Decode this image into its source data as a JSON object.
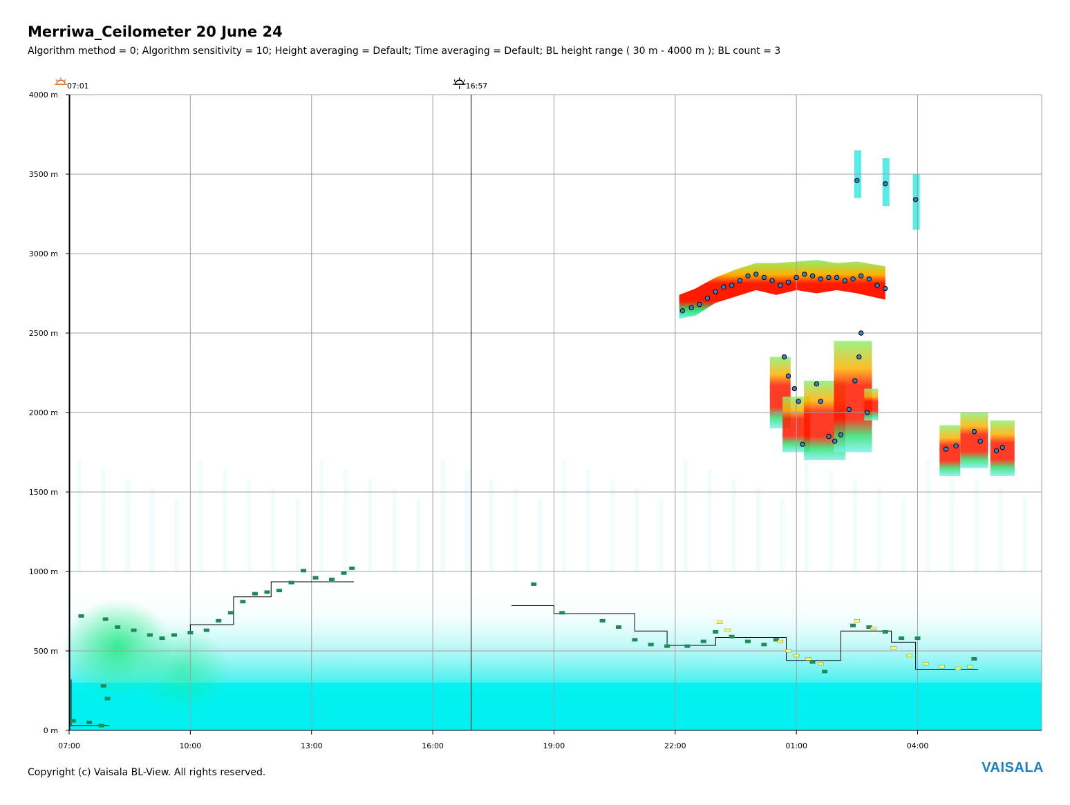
{
  "chart_data": {
    "type": "heatmap",
    "title": "Merriwa_Ceilometer 20 June 24",
    "subtitle": "Algorithm method = 0; Algorithm sensitivity = 10; Height averaging = Default; Time averaging = Default; BL height range ( 30 m - 4000 m ); BL count = 3",
    "y_ticks": [
      {
        "label": "0 m",
        "value": 0
      },
      {
        "label": "500 m",
        "value": 500
      },
      {
        "label": "1000 m",
        "value": 1000
      },
      {
        "label": "1500 m",
        "value": 1500
      },
      {
        "label": "2000 m",
        "value": 2000
      },
      {
        "label": "2500 m",
        "value": 2500
      },
      {
        "label": "3000 m",
        "value": 3000
      },
      {
        "label": "3500 m",
        "value": 3500
      },
      {
        "label": "4000 m",
        "value": 4000
      }
    ],
    "ylim": [
      0,
      4000
    ],
    "x_start_hours": 7.0,
    "x_end_hours": 31.07,
    "x_ticks": [
      {
        "label": "07:00",
        "hours": 7
      },
      {
        "label": "10:00",
        "hours": 10
      },
      {
        "label": "13:00",
        "hours": 13
      },
      {
        "label": "16:00",
        "hours": 16
      },
      {
        "label": "19:00",
        "hours": 19
      },
      {
        "label": "22:00",
        "hours": 22
      },
      {
        "label": "01:00",
        "hours": 25
      },
      {
        "label": "04:00",
        "hours": 28
      }
    ],
    "sunrise": {
      "label": "07:01",
      "hours": 7.017
    },
    "sunset": {
      "label": "16:57",
      "hours": 16.95
    },
    "grid": true,
    "bl_step_line": [
      [
        7.05,
        320
      ],
      [
        7.05,
        30
      ],
      [
        8.0,
        30
      ]
    ],
    "bl_step_line_2": [
      [
        10.0,
        620
      ],
      [
        10.0,
        665
      ],
      [
        11.07,
        665
      ],
      [
        11.07,
        840
      ],
      [
        12.0,
        840
      ],
      [
        12.0,
        935
      ],
      [
        14.05,
        935
      ]
    ],
    "bl_step_line_3": [
      [
        17.95,
        785
      ],
      [
        19.0,
        785
      ],
      [
        19.0,
        735
      ],
      [
        21.0,
        735
      ],
      [
        21.0,
        625
      ],
      [
        21.8,
        625
      ],
      [
        21.8,
        535
      ],
      [
        23.0,
        535
      ],
      [
        23.0,
        585
      ],
      [
        24.75,
        585
      ],
      [
        24.75,
        440
      ],
      [
        26.1,
        440
      ],
      [
        26.1,
        625
      ],
      [
        27.35,
        625
      ],
      [
        27.35,
        555
      ],
      [
        27.95,
        555
      ],
      [
        27.95,
        385
      ],
      [
        29.5,
        385
      ]
    ],
    "bl_points_green": [
      [
        7.3,
        720
      ],
      [
        7.9,
        700
      ],
      [
        8.2,
        650
      ],
      [
        8.6,
        630
      ],
      [
        9.0,
        600
      ],
      [
        9.3,
        580
      ],
      [
        9.6,
        600
      ],
      [
        10.0,
        615
      ],
      [
        10.4,
        630
      ],
      [
        10.7,
        690
      ],
      [
        11.0,
        740
      ],
      [
        11.3,
        810
      ],
      [
        11.6,
        860
      ],
      [
        11.9,
        870
      ],
      [
        12.2,
        880
      ],
      [
        12.5,
        930
      ],
      [
        12.8,
        1005
      ],
      [
        13.1,
        960
      ],
      [
        13.5,
        950
      ],
      [
        13.8,
        990
      ],
      [
        14.0,
        1020
      ],
      [
        7.1,
        60
      ],
      [
        7.5,
        50
      ],
      [
        7.8,
        30
      ],
      [
        7.85,
        280
      ],
      [
        7.95,
        200
      ],
      [
        18.5,
        920
      ],
      [
        19.2,
        740
      ],
      [
        20.2,
        690
      ],
      [
        20.6,
        650
      ],
      [
        21.0,
        570
      ],
      [
        21.4,
        540
      ],
      [
        21.8,
        530
      ],
      [
        22.3,
        530
      ],
      [
        22.7,
        560
      ],
      [
        23.0,
        620
      ],
      [
        23.4,
        590
      ],
      [
        23.8,
        560
      ],
      [
        24.2,
        540
      ],
      [
        24.5,
        570
      ],
      [
        25.4,
        430
      ],
      [
        25.7,
        370
      ],
      [
        26.4,
        660
      ],
      [
        26.8,
        650
      ],
      [
        27.2,
        620
      ],
      [
        27.6,
        580
      ],
      [
        28.0,
        580
      ],
      [
        29.4,
        450
      ]
    ],
    "bl_points_yellow": [
      [
        23.1,
        680
      ],
      [
        23.3,
        630
      ],
      [
        24.6,
        560
      ],
      [
        24.8,
        500
      ],
      [
        25.0,
        470
      ],
      [
        25.3,
        450
      ],
      [
        25.6,
        420
      ],
      [
        26.5,
        690
      ],
      [
        26.9,
        640
      ],
      [
        27.4,
        520
      ],
      [
        27.8,
        470
      ],
      [
        28.2,
        420
      ],
      [
        28.6,
        400
      ],
      [
        29.0,
        390
      ],
      [
        29.3,
        400
      ]
    ],
    "cloud_points": [
      [
        22.18,
        2640
      ],
      [
        22.4,
        2660
      ],
      [
        22.6,
        2680
      ],
      [
        22.8,
        2720
      ],
      [
        23.0,
        2760
      ],
      [
        23.2,
        2790
      ],
      [
        23.4,
        2800
      ],
      [
        23.6,
        2830
      ],
      [
        23.8,
        2860
      ],
      [
        24.0,
        2870
      ],
      [
        24.2,
        2850
      ],
      [
        24.4,
        2830
      ],
      [
        24.6,
        2800
      ],
      [
        24.8,
        2820
      ],
      [
        25.0,
        2850
      ],
      [
        25.2,
        2870
      ],
      [
        25.4,
        2860
      ],
      [
        25.6,
        2840
      ],
      [
        25.8,
        2850
      ],
      [
        26.0,
        2850
      ],
      [
        26.2,
        2830
      ],
      [
        26.4,
        2840
      ],
      [
        26.6,
        2860
      ],
      [
        26.8,
        2840
      ],
      [
        27.0,
        2800
      ],
      [
        27.2,
        2780
      ],
      [
        24.7,
        2350
      ],
      [
        24.8,
        2230
      ],
      [
        24.95,
        2150
      ],
      [
        25.05,
        2070
      ],
      [
        25.15,
        1800
      ],
      [
        25.5,
        2180
      ],
      [
        25.6,
        2070
      ],
      [
        25.8,
        1850
      ],
      [
        25.95,
        1820
      ],
      [
        26.1,
        1860
      ],
      [
        26.3,
        2020
      ],
      [
        26.45,
        2200
      ],
      [
        26.55,
        2350
      ],
      [
        26.6,
        2500
      ],
      [
        26.75,
        2000
      ],
      [
        26.5,
        3460
      ],
      [
        27.2,
        3440
      ],
      [
        27.95,
        3340
      ],
      [
        28.7,
        1770
      ],
      [
        28.95,
        1790
      ],
      [
        29.4,
        1880
      ],
      [
        29.55,
        1820
      ],
      [
        29.95,
        1760
      ],
      [
        30.1,
        1780
      ]
    ],
    "annotations": []
  },
  "footer": {
    "copyright": "Copyright (c) Vaisala BL-View. All rights reserved.",
    "brand": "VAISALA"
  },
  "colors": {
    "grid": "#a0a0a0",
    "background_aerosol": "#00f0f0",
    "aerosol_green": "#1ee882",
    "cloud_red": "#ff1a00",
    "bl_green": "#1f8a55",
    "bl_yellow": "#ffff60",
    "cloud_point": "#3a7fbf",
    "step_line": "#000000",
    "sunrise_icon": "#e07020",
    "brand": "#1b7fc3"
  }
}
